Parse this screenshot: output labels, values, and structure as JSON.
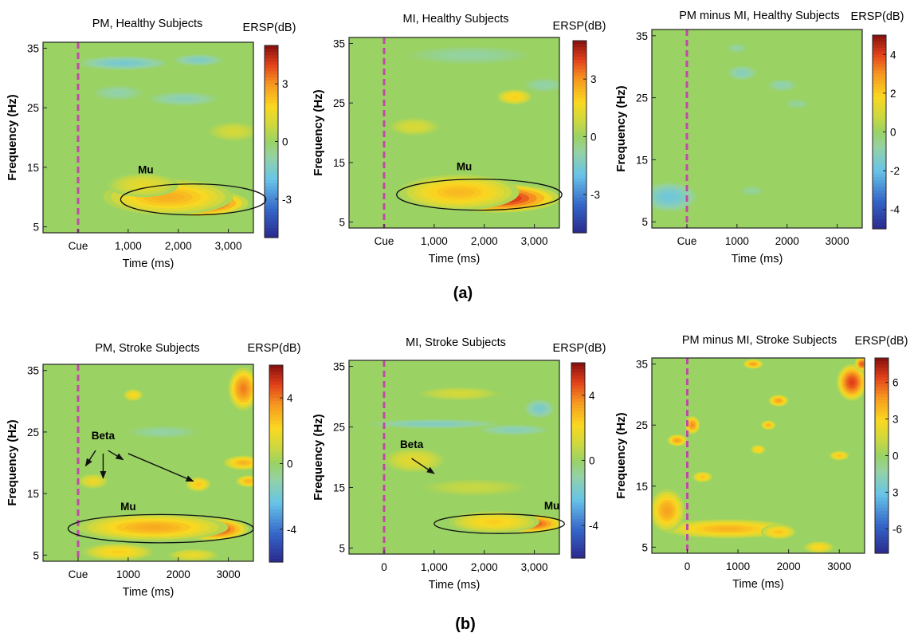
{
  "figure": {
    "panel_a_label": "(a)",
    "panel_b_label": "(b)"
  },
  "chart_data": [
    {
      "type": "heatmap",
      "title": "PM, Healthy Subjects",
      "xlabel": "Time (ms)",
      "ylabel": "Frequency (Hz)",
      "colorbar_title": "ERSP(dB)",
      "x_range": [
        -700,
        3500
      ],
      "y_range": [
        4,
        36
      ],
      "x_ticks": [
        {
          "v": 0,
          "label": "Cue"
        },
        {
          "v": 1000,
          "label": "1,000"
        },
        {
          "v": 2000,
          "label": "2,000"
        },
        {
          "v": 3000,
          "label": "3,000"
        }
      ],
      "y_ticks": [
        {
          "v": 5,
          "label": "5"
        },
        {
          "v": 15,
          "label": "15"
        },
        {
          "v": 25,
          "label": "25"
        },
        {
          "v": 35,
          "label": "35"
        }
      ],
      "clim": [
        -5,
        5
      ],
      "cb_ticks": [
        {
          "v": 3,
          "label": "3"
        },
        {
          "v": 0,
          "label": "0"
        },
        {
          "v": -3,
          "label": "-3"
        }
      ],
      "cue_time": 0,
      "blobs": [
        {
          "t": 2400,
          "f": 9,
          "rt": 1000,
          "rf": 2.2,
          "a": 4.6
        },
        {
          "t": 1800,
          "f": 10,
          "rt": 1300,
          "rf": 3,
          "a": 2.6
        },
        {
          "t": 1300,
          "f": 12,
          "rt": 700,
          "rf": 2,
          "a": 1.4
        },
        {
          "t": 900,
          "f": 32.5,
          "rt": 900,
          "rf": 1.2,
          "a": -1.6
        },
        {
          "t": 2400,
          "f": 33,
          "rt": 500,
          "rf": 1,
          "a": -1.4
        },
        {
          "t": 2100,
          "f": 26.5,
          "rt": 700,
          "rf": 1.2,
          "a": -1.1
        },
        {
          "t": 800,
          "f": 27.5,
          "rt": 500,
          "rf": 1.3,
          "a": -0.9
        },
        {
          "t": 3100,
          "f": 21,
          "rt": 500,
          "rf": 1.6,
          "a": 1
        }
      ],
      "annotations": [
        {
          "text": "Mu",
          "kind": "ellipse",
          "t": 2300,
          "f": 9.6,
          "rt": 1450,
          "rf": 2.6,
          "lt": 1350,
          "lf": 14
        }
      ]
    },
    {
      "type": "heatmap",
      "title": "MI, Healthy Subjects",
      "xlabel": "Time (ms)",
      "ylabel": "Frequency (Hz)",
      "colorbar_title": "ERSP(dB)",
      "x_range": [
        -700,
        3500
      ],
      "y_range": [
        4,
        36
      ],
      "x_ticks": [
        {
          "v": 0,
          "label": "Cue"
        },
        {
          "v": 1000,
          "label": "1,000"
        },
        {
          "v": 2000,
          "label": "2,000"
        },
        {
          "v": 3000,
          "label": "3,000"
        }
      ],
      "y_ticks": [
        {
          "v": 5,
          "label": "5"
        },
        {
          "v": 15,
          "label": "15"
        },
        {
          "v": 25,
          "label": "25"
        },
        {
          "v": 35,
          "label": "35"
        }
      ],
      "clim": [
        -5,
        5
      ],
      "cb_ticks": [
        {
          "v": 3,
          "label": "3"
        },
        {
          "v": 0,
          "label": "0"
        },
        {
          "v": -3,
          "label": "-3"
        }
      ],
      "cue_time": 0,
      "blobs": [
        {
          "t": 2300,
          "f": 9,
          "rt": 1200,
          "rf": 2.4,
          "a": 4.6
        },
        {
          "t": 1500,
          "f": 10,
          "rt": 1200,
          "rf": 3,
          "a": 2.4
        },
        {
          "t": 2600,
          "f": 26,
          "rt": 350,
          "rf": 1.3,
          "a": 2
        },
        {
          "t": 1700,
          "f": 33,
          "rt": 1200,
          "rf": 1.5,
          "a": -0.8
        },
        {
          "t": 3200,
          "f": 28,
          "rt": 400,
          "rf": 1.2,
          "a": -0.9
        },
        {
          "t": 600,
          "f": 21,
          "rt": 500,
          "rf": 1.5,
          "a": 1.1
        }
      ],
      "annotations": [
        {
          "text": "Mu",
          "kind": "ellipse",
          "t": 1900,
          "f": 9.6,
          "rt": 1650,
          "rf": 2.6,
          "lt": 1600,
          "lf": 13.7
        }
      ]
    },
    {
      "type": "heatmap",
      "title": "PM minus MI, Healthy Subjects",
      "xlabel": "Time (ms)",
      "ylabel": "Frequency (Hz)",
      "colorbar_title": "ERSP(dB)",
      "x_range": [
        -700,
        3500
      ],
      "y_range": [
        4,
        36
      ],
      "x_ticks": [
        {
          "v": 0,
          "label": "Cue"
        },
        {
          "v": 1000,
          "label": "1000"
        },
        {
          "v": 2000,
          "label": "2000"
        },
        {
          "v": 3000,
          "label": "3000"
        }
      ],
      "y_ticks": [
        {
          "v": 5,
          "label": "5"
        },
        {
          "v": 15,
          "label": "15"
        },
        {
          "v": 25,
          "label": "25"
        },
        {
          "v": 35,
          "label": "35"
        }
      ],
      "clim": [
        -5,
        5
      ],
      "cb_ticks": [
        {
          "v": 4,
          "label": "4"
        },
        {
          "v": 2,
          "label": "2"
        },
        {
          "v": 0,
          "label": "0"
        },
        {
          "v": -2,
          "label": "-2"
        },
        {
          "v": -4,
          "label": "-4"
        }
      ],
      "cue_time": 0,
      "blobs": [
        {
          "t": -350,
          "f": 9,
          "rt": 550,
          "rf": 2.4,
          "a": -1.8
        },
        {
          "t": 1100,
          "f": 29,
          "rt": 300,
          "rf": 1.2,
          "a": -1.2
        },
        {
          "t": 1900,
          "f": 27,
          "rt": 300,
          "rf": 1,
          "a": -1
        },
        {
          "t": 1300,
          "f": 10,
          "rt": 250,
          "rf": 0.8,
          "a": -0.7
        },
        {
          "t": 2200,
          "f": 24,
          "rt": 250,
          "rf": 0.8,
          "a": -0.7
        },
        {
          "t": 1000,
          "f": 33,
          "rt": 200,
          "rf": 0.8,
          "a": -0.8
        }
      ],
      "annotations": []
    },
    {
      "type": "heatmap",
      "title": "PM, Stroke Subjects",
      "xlabel": "Time (ms)",
      "ylabel": "Frequency (Hz)",
      "colorbar_title": "ERSP(dB)",
      "x_range": [
        -700,
        3500
      ],
      "y_range": [
        4,
        36
      ],
      "x_ticks": [
        {
          "v": 0,
          "label": "Cue"
        },
        {
          "v": 1000,
          "label": "1000"
        },
        {
          "v": 2000,
          "label": "2000"
        },
        {
          "v": 3000,
          "label": "3000"
        }
      ],
      "y_ticks": [
        {
          "v": 5,
          "label": "5"
        },
        {
          "v": 15,
          "label": "15"
        },
        {
          "v": 25,
          "label": "25"
        },
        {
          "v": 35,
          "label": "35"
        }
      ],
      "clim": [
        -6,
        6
      ],
      "cb_ticks": [
        {
          "v": 4,
          "label": "4"
        },
        {
          "v": 0,
          "label": "0"
        },
        {
          "v": -4,
          "label": "-4"
        }
      ],
      "cue_time": 0,
      "blobs": [
        {
          "t": 2700,
          "f": 9.2,
          "rt": 700,
          "rf": 1.8,
          "a": 5.2
        },
        {
          "t": 1500,
          "f": 9.5,
          "rt": 1500,
          "rf": 2.2,
          "a": 3.2
        },
        {
          "t": 3300,
          "f": 32,
          "rt": 300,
          "rf": 3.5,
          "a": 4
        },
        {
          "t": 3300,
          "f": 20,
          "rt": 400,
          "rf": 1.2,
          "a": 3
        },
        {
          "t": 3400,
          "f": 17,
          "rt": 250,
          "rf": 1,
          "a": 3
        },
        {
          "t": 2400,
          "f": 16.5,
          "rt": 250,
          "rf": 1.2,
          "a": 2.6
        },
        {
          "t": 300,
          "f": 17,
          "rt": 300,
          "rf": 1.2,
          "a": 1.8
        },
        {
          "t": 1100,
          "f": 31,
          "rt": 200,
          "rf": 1,
          "a": 2.2
        },
        {
          "t": 1700,
          "f": 25,
          "rt": 700,
          "rf": 1,
          "a": -1
        },
        {
          "t": 800,
          "f": 5.5,
          "rt": 700,
          "rf": 1.4,
          "a": 2.4
        },
        {
          "t": 2300,
          "f": 5,
          "rt": 500,
          "rf": 1,
          "a": 1.8
        }
      ],
      "annotations": [
        {
          "text": "Mu",
          "kind": "ellipse",
          "t": 1650,
          "f": 9.3,
          "rt": 1850,
          "rf": 2.3,
          "lt": 1000,
          "lf": 12.3
        },
        {
          "text": "Beta",
          "kind": "arrows",
          "lt": 500,
          "lf": 23.8,
          "arrows": [
            [
              350,
              22,
              150,
              19.5
            ],
            [
              600,
              22,
              900,
              20.5
            ],
            [
              500,
              21.5,
              500,
              17.5
            ],
            [
              1000,
              21.5,
              2300,
              17
            ]
          ]
        }
      ]
    },
    {
      "type": "heatmap",
      "title": "MI, Stroke Subjects",
      "xlabel": "Time (ms)",
      "ylabel": "Frequency (Hz)",
      "colorbar_title": "ERSP(dB)",
      "x_range": [
        -700,
        3500
      ],
      "y_range": [
        4,
        36
      ],
      "x_ticks": [
        {
          "v": 0,
          "label": "0"
        },
        {
          "v": 1000,
          "label": "1,000"
        },
        {
          "v": 2000,
          "label": "2,000"
        },
        {
          "v": 3000,
          "label": "3,000"
        }
      ],
      "y_ticks": [
        {
          "v": 5,
          "label": "5"
        },
        {
          "v": 15,
          "label": "15"
        },
        {
          "v": 25,
          "label": "25"
        },
        {
          "v": 35,
          "label": "35"
        }
      ],
      "clim": [
        -6,
        6
      ],
      "cb_ticks": [
        {
          "v": 4,
          "label": "4"
        },
        {
          "v": 0,
          "label": "0"
        },
        {
          "v": -4,
          "label": "-4"
        }
      ],
      "cue_time": 0,
      "blobs": [
        {
          "t": 2900,
          "f": 9,
          "rt": 700,
          "rf": 1.5,
          "a": 4.8
        },
        {
          "t": 2200,
          "f": 9.3,
          "rt": 900,
          "rf": 1.8,
          "a": 2.4
        },
        {
          "t": 600,
          "f": 19.5,
          "rt": 600,
          "rf": 2,
          "a": 1.6
        },
        {
          "t": 1000,
          "f": 25.5,
          "rt": 1300,
          "rf": 0.8,
          "a": -1.6
        },
        {
          "t": 3100,
          "f": 28,
          "rt": 300,
          "rf": 1.6,
          "a": -1.8
        },
        {
          "t": 2600,
          "f": 24.5,
          "rt": 700,
          "rf": 0.9,
          "a": -1.4
        },
        {
          "t": 1500,
          "f": 30.5,
          "rt": 800,
          "rf": 1.1,
          "a": 1.2
        },
        {
          "t": 1800,
          "f": 15,
          "rt": 1000,
          "rf": 1.4,
          "a": 0.9
        }
      ],
      "annotations": [
        {
          "text": "Mu",
          "kind": "ellipse",
          "t": 2300,
          "f": 9,
          "rt": 1300,
          "rf": 1.6,
          "lt": 3350,
          "lf": 11.4
        },
        {
          "text": "Beta",
          "kind": "arrows",
          "lt": 550,
          "lf": 21.5,
          "arrows": [
            [
              550,
              19.8,
              1000,
              17.3
            ]
          ]
        }
      ]
    },
    {
      "type": "heatmap",
      "title": "PM minus MI, Stroke Subjects",
      "xlabel": "Time (ms)",
      "ylabel": "Frequency (Hz)",
      "colorbar_title": "ERSP(dB)",
      "x_range": [
        -700,
        3500
      ],
      "y_range": [
        4,
        36
      ],
      "x_ticks": [
        {
          "v": 0,
          "label": "0"
        },
        {
          "v": 1000,
          "label": "1000"
        },
        {
          "v": 2000,
          "label": "2000"
        },
        {
          "v": 3000,
          "label": "3000"
        }
      ],
      "y_ticks": [
        {
          "v": 5,
          "label": "5"
        },
        {
          "v": 15,
          "label": "15"
        },
        {
          "v": 25,
          "label": "25"
        },
        {
          "v": 35,
          "label": "35"
        }
      ],
      "clim": [
        -8,
        8
      ],
      "cb_ticks": [
        {
          "v": 6,
          "label": "6"
        },
        {
          "v": 3,
          "label": "3"
        },
        {
          "v": 0,
          "label": "0"
        },
        {
          "v": 3,
          "label": "3"
        },
        {
          "v": -6,
          "label": "-6"
        }
      ],
      "cue_time": 0,
      "blobs": [
        {
          "t": 3250,
          "f": 32,
          "rt": 300,
          "rf": 3,
          "a": 6.5
        },
        {
          "t": 3450,
          "f": 35,
          "rt": 150,
          "rf": 1.2,
          "a": 6
        },
        {
          "t": 800,
          "f": 8,
          "rt": 1300,
          "rf": 1.6,
          "a": 4
        },
        {
          "t": -400,
          "f": 11,
          "rt": 350,
          "rf": 3.5,
          "a": 4.5
        },
        {
          "t": 100,
          "f": 25,
          "rt": 150,
          "rf": 1.5,
          "a": 5
        },
        {
          "t": -200,
          "f": 22.5,
          "rt": 200,
          "rf": 1,
          "a": 4.5
        },
        {
          "t": 1800,
          "f": 29,
          "rt": 200,
          "rf": 1,
          "a": 4.5
        },
        {
          "t": 1800,
          "f": 7.5,
          "rt": 350,
          "rf": 1.2,
          "a": 3.5
        },
        {
          "t": 1600,
          "f": 25,
          "rt": 150,
          "rf": 0.8,
          "a": 4
        },
        {
          "t": 1300,
          "f": 35,
          "rt": 200,
          "rf": 0.8,
          "a": 4.5
        },
        {
          "t": 3000,
          "f": 20,
          "rt": 200,
          "rf": 0.8,
          "a": 3.5
        },
        {
          "t": 300,
          "f": 16.5,
          "rt": 200,
          "rf": 0.9,
          "a": 3.5
        },
        {
          "t": 2600,
          "f": 5,
          "rt": 300,
          "rf": 1,
          "a": 3
        },
        {
          "t": 1400,
          "f": 21,
          "rt": 150,
          "rf": 0.8,
          "a": 3.2
        }
      ],
      "annotations": []
    }
  ]
}
